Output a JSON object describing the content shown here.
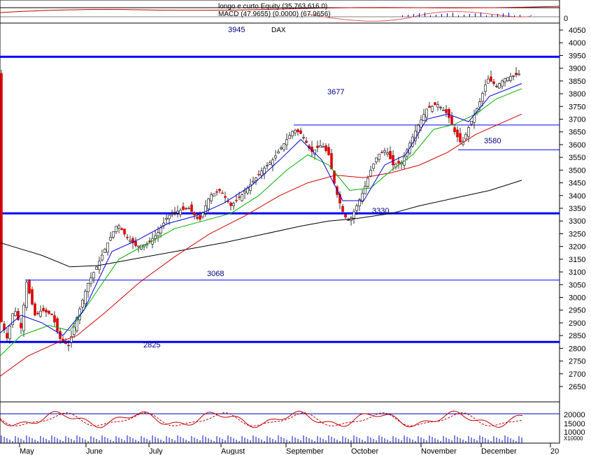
{
  "chart_data": {
    "type": "candlestick",
    "title": "DAX",
    "header_lines": [
      "longo e curto Equity (35,763,616.0)",
      "MACD (47.9655) (0.0000) (67.9656)"
    ],
    "y_axis": {
      "min": 2550,
      "max": 4050,
      "ticks": [
        4050,
        4000,
        3950,
        3900,
        3850,
        3800,
        3750,
        3700,
        3650,
        3600,
        3550,
        3500,
        3450,
        3400,
        3350,
        3300,
        3250,
        3200,
        3150,
        3100,
        3050,
        3000,
        2950,
        2900,
        2850,
        2800,
        2750,
        2700,
        2650
      ]
    },
    "macd_axis_label": "0",
    "volume_axis_ticks": [
      "20000",
      "15000",
      "10000",
      "X10000"
    ],
    "months": [
      "May",
      "June",
      "July",
      "August",
      "September",
      "October",
      "November",
      "December",
      "20"
    ],
    "levels": [
      {
        "value": 3945,
        "label": "3945",
        "weight": "thick"
      },
      {
        "value": 3677,
        "label": "3677",
        "weight": "thin"
      },
      {
        "value": 3580,
        "label": "3580",
        "weight": "thin"
      },
      {
        "value": 3330,
        "label": "3330",
        "weight": "thick"
      },
      {
        "value": 3068,
        "label": "3068",
        "weight": "thin"
      },
      {
        "value": 2825,
        "label": "2825",
        "weight": "thick"
      }
    ],
    "close_path": [
      [
        0,
        2920
      ],
      [
        10,
        2840
      ],
      [
        20,
        2960
      ],
      [
        30,
        2880
      ],
      [
        38,
        3060
      ],
      [
        50,
        2930
      ],
      [
        60,
        2950
      ],
      [
        75,
        2930
      ],
      [
        85,
        2840
      ],
      [
        98,
        2810
      ],
      [
        110,
        2920
      ],
      [
        125,
        3050
      ],
      [
        140,
        3130
      ],
      [
        155,
        3220
      ],
      [
        168,
        3290
      ],
      [
        180,
        3240
      ],
      [
        195,
        3200
      ],
      [
        210,
        3210
      ],
      [
        225,
        3250
      ],
      [
        240,
        3320
      ],
      [
        255,
        3340
      ],
      [
        270,
        3350
      ],
      [
        285,
        3300
      ],
      [
        300,
        3400
      ],
      [
        315,
        3420
      ],
      [
        330,
        3360
      ],
      [
        345,
        3400
      ],
      [
        360,
        3450
      ],
      [
        375,
        3500
      ],
      [
        390,
        3540
      ],
      [
        405,
        3600
      ],
      [
        420,
        3660
      ],
      [
        432,
        3640
      ],
      [
        445,
        3570
      ],
      [
        460,
        3600
      ],
      [
        470,
        3560
      ],
      [
        480,
        3420
      ],
      [
        492,
        3320
      ],
      [
        500,
        3300
      ],
      [
        510,
        3360
      ],
      [
        520,
        3420
      ],
      [
        530,
        3500
      ],
      [
        540,
        3560
      ],
      [
        552,
        3580
      ],
      [
        562,
        3520
      ],
      [
        575,
        3530
      ],
      [
        585,
        3600
      ],
      [
        595,
        3660
      ],
      [
        610,
        3740
      ],
      [
        625,
        3760
      ],
      [
        640,
        3720
      ],
      [
        650,
        3650
      ],
      [
        660,
        3600
      ],
      [
        672,
        3680
      ],
      [
        685,
        3760
      ],
      [
        697,
        3860
      ],
      [
        710,
        3830
      ],
      [
        722,
        3860
      ],
      [
        733,
        3870
      ],
      [
        745,
        3880
      ]
    ],
    "ma_black": [
      [
        0,
        3215
      ],
      [
        30,
        3190
      ],
      [
        60,
        3165
      ],
      [
        100,
        3120
      ],
      [
        140,
        3125
      ],
      [
        200,
        3155
      ],
      [
        260,
        3185
      ],
      [
        320,
        3215
      ],
      [
        380,
        3250
      ],
      [
        430,
        3280
      ],
      [
        470,
        3300
      ],
      [
        510,
        3310
      ],
      [
        560,
        3330
      ],
      [
        600,
        3360
      ],
      [
        650,
        3390
      ],
      [
        700,
        3420
      ],
      [
        746,
        3460
      ]
    ],
    "ma_red": [
      [
        0,
        2690
      ],
      [
        40,
        2770
      ],
      [
        80,
        2820
      ],
      [
        110,
        2850
      ],
      [
        150,
        2940
      ],
      [
        200,
        3060
      ],
      [
        250,
        3160
      ],
      [
        300,
        3250
      ],
      [
        350,
        3320
      ],
      [
        400,
        3400
      ],
      [
        440,
        3450
      ],
      [
        480,
        3480
      ],
      [
        520,
        3470
      ],
      [
        560,
        3490
      ],
      [
        600,
        3520
      ],
      [
        640,
        3570
      ],
      [
        680,
        3640
      ],
      [
        746,
        3720
      ]
    ],
    "ma_green": [
      [
        0,
        2770
      ],
      [
        30,
        2850
      ],
      [
        70,
        2890
      ],
      [
        100,
        2870
      ],
      [
        130,
        2990
      ],
      [
        170,
        3150
      ],
      [
        210,
        3210
      ],
      [
        250,
        3270
      ],
      [
        290,
        3300
      ],
      [
        330,
        3330
      ],
      [
        370,
        3400
      ],
      [
        410,
        3500
      ],
      [
        440,
        3560
      ],
      [
        470,
        3520
      ],
      [
        500,
        3420
      ],
      [
        530,
        3430
      ],
      [
        560,
        3500
      ],
      [
        590,
        3560
      ],
      [
        620,
        3660
      ],
      [
        650,
        3680
      ],
      [
        680,
        3720
      ],
      [
        710,
        3780
      ],
      [
        746,
        3820
      ]
    ],
    "ma_blue": [
      [
        0,
        2860
      ],
      [
        30,
        2930
      ],
      [
        60,
        2900
      ],
      [
        90,
        2850
      ],
      [
        120,
        2950
      ],
      [
        160,
        3180
      ],
      [
        200,
        3230
      ],
      [
        240,
        3290
      ],
      [
        280,
        3320
      ],
      [
        320,
        3370
      ],
      [
        360,
        3440
      ],
      [
        400,
        3540
      ],
      [
        430,
        3620
      ],
      [
        460,
        3540
      ],
      [
        490,
        3380
      ],
      [
        520,
        3380
      ],
      [
        550,
        3520
      ],
      [
        580,
        3560
      ],
      [
        610,
        3700
      ],
      [
        640,
        3720
      ],
      [
        670,
        3690
      ],
      [
        700,
        3790
      ],
      [
        746,
        3840
      ]
    ]
  },
  "colors": {
    "bull": "#ffffff",
    "bear": "#e00000",
    "level": "#0000ff",
    "label": "#00007f"
  }
}
